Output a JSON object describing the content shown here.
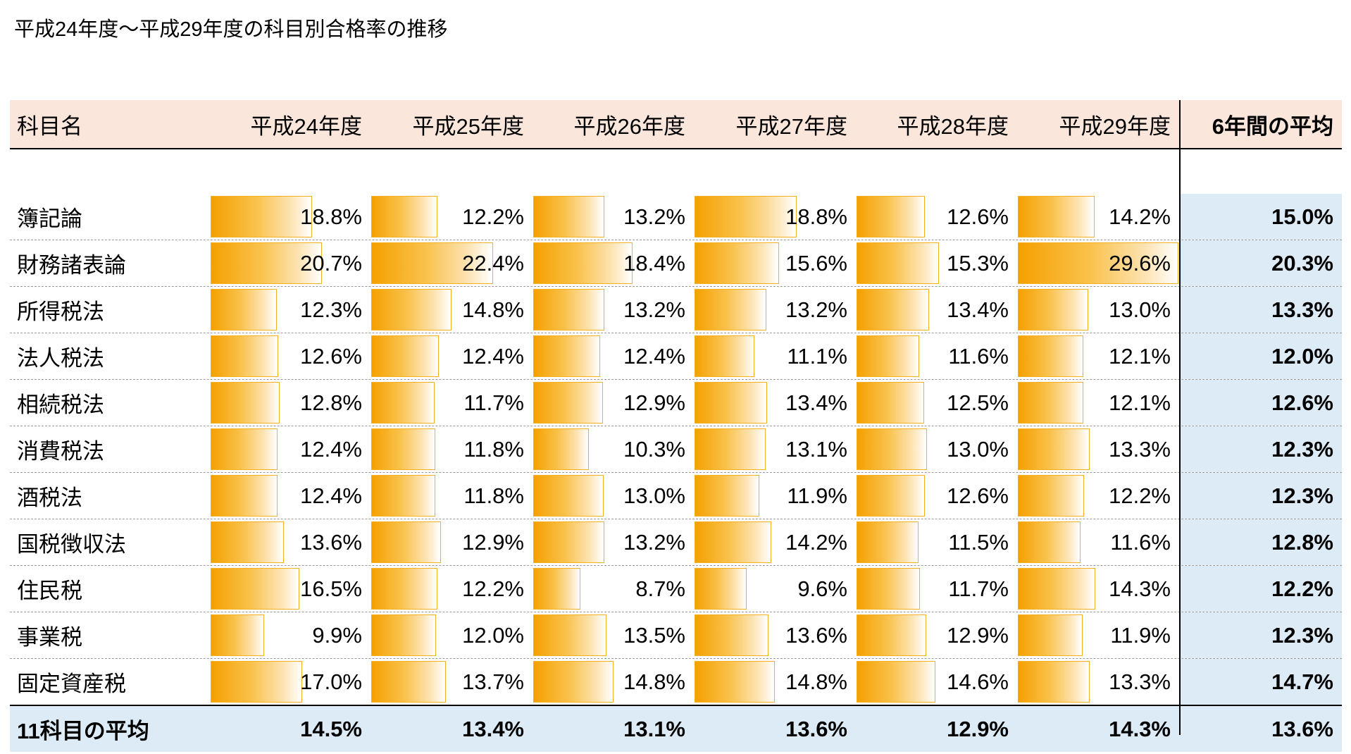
{
  "title": "平成24年度～平成29年度の科目別合格率の推移",
  "chart_data": {
    "type": "table",
    "title": "平成24年度～平成29年度の科目別合格率の推移",
    "columns": [
      "科目名",
      "平成24年度",
      "平成25年度",
      "平成26年度",
      "平成27年度",
      "平成28年度",
      "平成29年度",
      "6年間の平均"
    ],
    "bar_scale_max": 29.6,
    "rows": [
      {
        "name": "簿記論",
        "values": [
          18.8,
          12.2,
          13.2,
          18.8,
          12.6,
          14.2
        ],
        "labels": [
          "18.8%",
          "12.2%",
          "13.2%",
          "18.8%",
          "12.6%",
          "14.2%"
        ],
        "avg": "15.0%"
      },
      {
        "name": "財務諸表論",
        "values": [
          20.7,
          22.4,
          18.4,
          15.6,
          15.3,
          29.6
        ],
        "labels": [
          "20.7%",
          "22.4%",
          "18.4%",
          "15.6%",
          "15.3%",
          "29.6%"
        ],
        "avg": "20.3%"
      },
      {
        "name": "所得税法",
        "values": [
          12.3,
          14.8,
          13.2,
          13.2,
          13.4,
          13.0
        ],
        "labels": [
          "12.3%",
          "14.8%",
          "13.2%",
          "13.2%",
          "13.4%",
          "13.0%"
        ],
        "avg": "13.3%"
      },
      {
        "name": "法人税法",
        "values": [
          12.6,
          12.4,
          12.4,
          11.1,
          11.6,
          12.1
        ],
        "labels": [
          "12.6%",
          "12.4%",
          "12.4%",
          "11.1%",
          "11.6%",
          "12.1%"
        ],
        "avg": "12.0%"
      },
      {
        "name": "相続税法",
        "values": [
          12.8,
          11.7,
          12.9,
          13.4,
          12.5,
          12.1
        ],
        "labels": [
          "12.8%",
          "11.7%",
          "12.9%",
          "13.4%",
          "12.5%",
          "12.1%"
        ],
        "avg": "12.6%"
      },
      {
        "name": "消費税法",
        "values": [
          12.4,
          11.8,
          10.3,
          13.1,
          13.0,
          13.3
        ],
        "labels": [
          "12.4%",
          "11.8%",
          "10.3%",
          "13.1%",
          "13.0%",
          "13.3%"
        ],
        "avg": "12.3%"
      },
      {
        "name": "酒税法",
        "values": [
          12.4,
          11.8,
          13.0,
          11.9,
          12.6,
          12.2
        ],
        "labels": [
          "12.4%",
          "11.8%",
          "13.0%",
          "11.9%",
          "12.6%",
          "12.2%"
        ],
        "avg": "12.3%"
      },
      {
        "name": "国税徴収法",
        "values": [
          13.6,
          12.9,
          13.2,
          14.2,
          11.5,
          11.6
        ],
        "labels": [
          "13.6%",
          "12.9%",
          "13.2%",
          "14.2%",
          "11.5%",
          "11.6%"
        ],
        "avg": "12.8%"
      },
      {
        "name": "住民税",
        "values": [
          16.5,
          12.2,
          8.7,
          9.6,
          11.7,
          14.3
        ],
        "labels": [
          "16.5%",
          "12.2%",
          "8.7%",
          "9.6%",
          "11.7%",
          "14.3%"
        ],
        "avg": "12.2%"
      },
      {
        "name": "事業税",
        "values": [
          9.9,
          12.0,
          13.5,
          13.6,
          12.9,
          11.9
        ],
        "labels": [
          "9.9%",
          "12.0%",
          "13.5%",
          "13.6%",
          "12.9%",
          "11.9%"
        ],
        "avg": "12.3%"
      },
      {
        "name": "固定資産税",
        "values": [
          17.0,
          13.7,
          14.8,
          14.8,
          14.6,
          13.3
        ],
        "labels": [
          "17.0%",
          "13.7%",
          "14.8%",
          "14.8%",
          "14.6%",
          "13.3%"
        ],
        "avg": "14.7%"
      }
    ],
    "footer": {
      "name": "11科目の平均",
      "labels": [
        "14.5%",
        "13.4%",
        "13.1%",
        "13.6%",
        "12.9%",
        "14.3%"
      ],
      "avg": "13.6%"
    }
  },
  "colors": {
    "header_bg": "#fbe6dc",
    "avg_bg": "#ddebf7",
    "bar": "#f5a000"
  }
}
